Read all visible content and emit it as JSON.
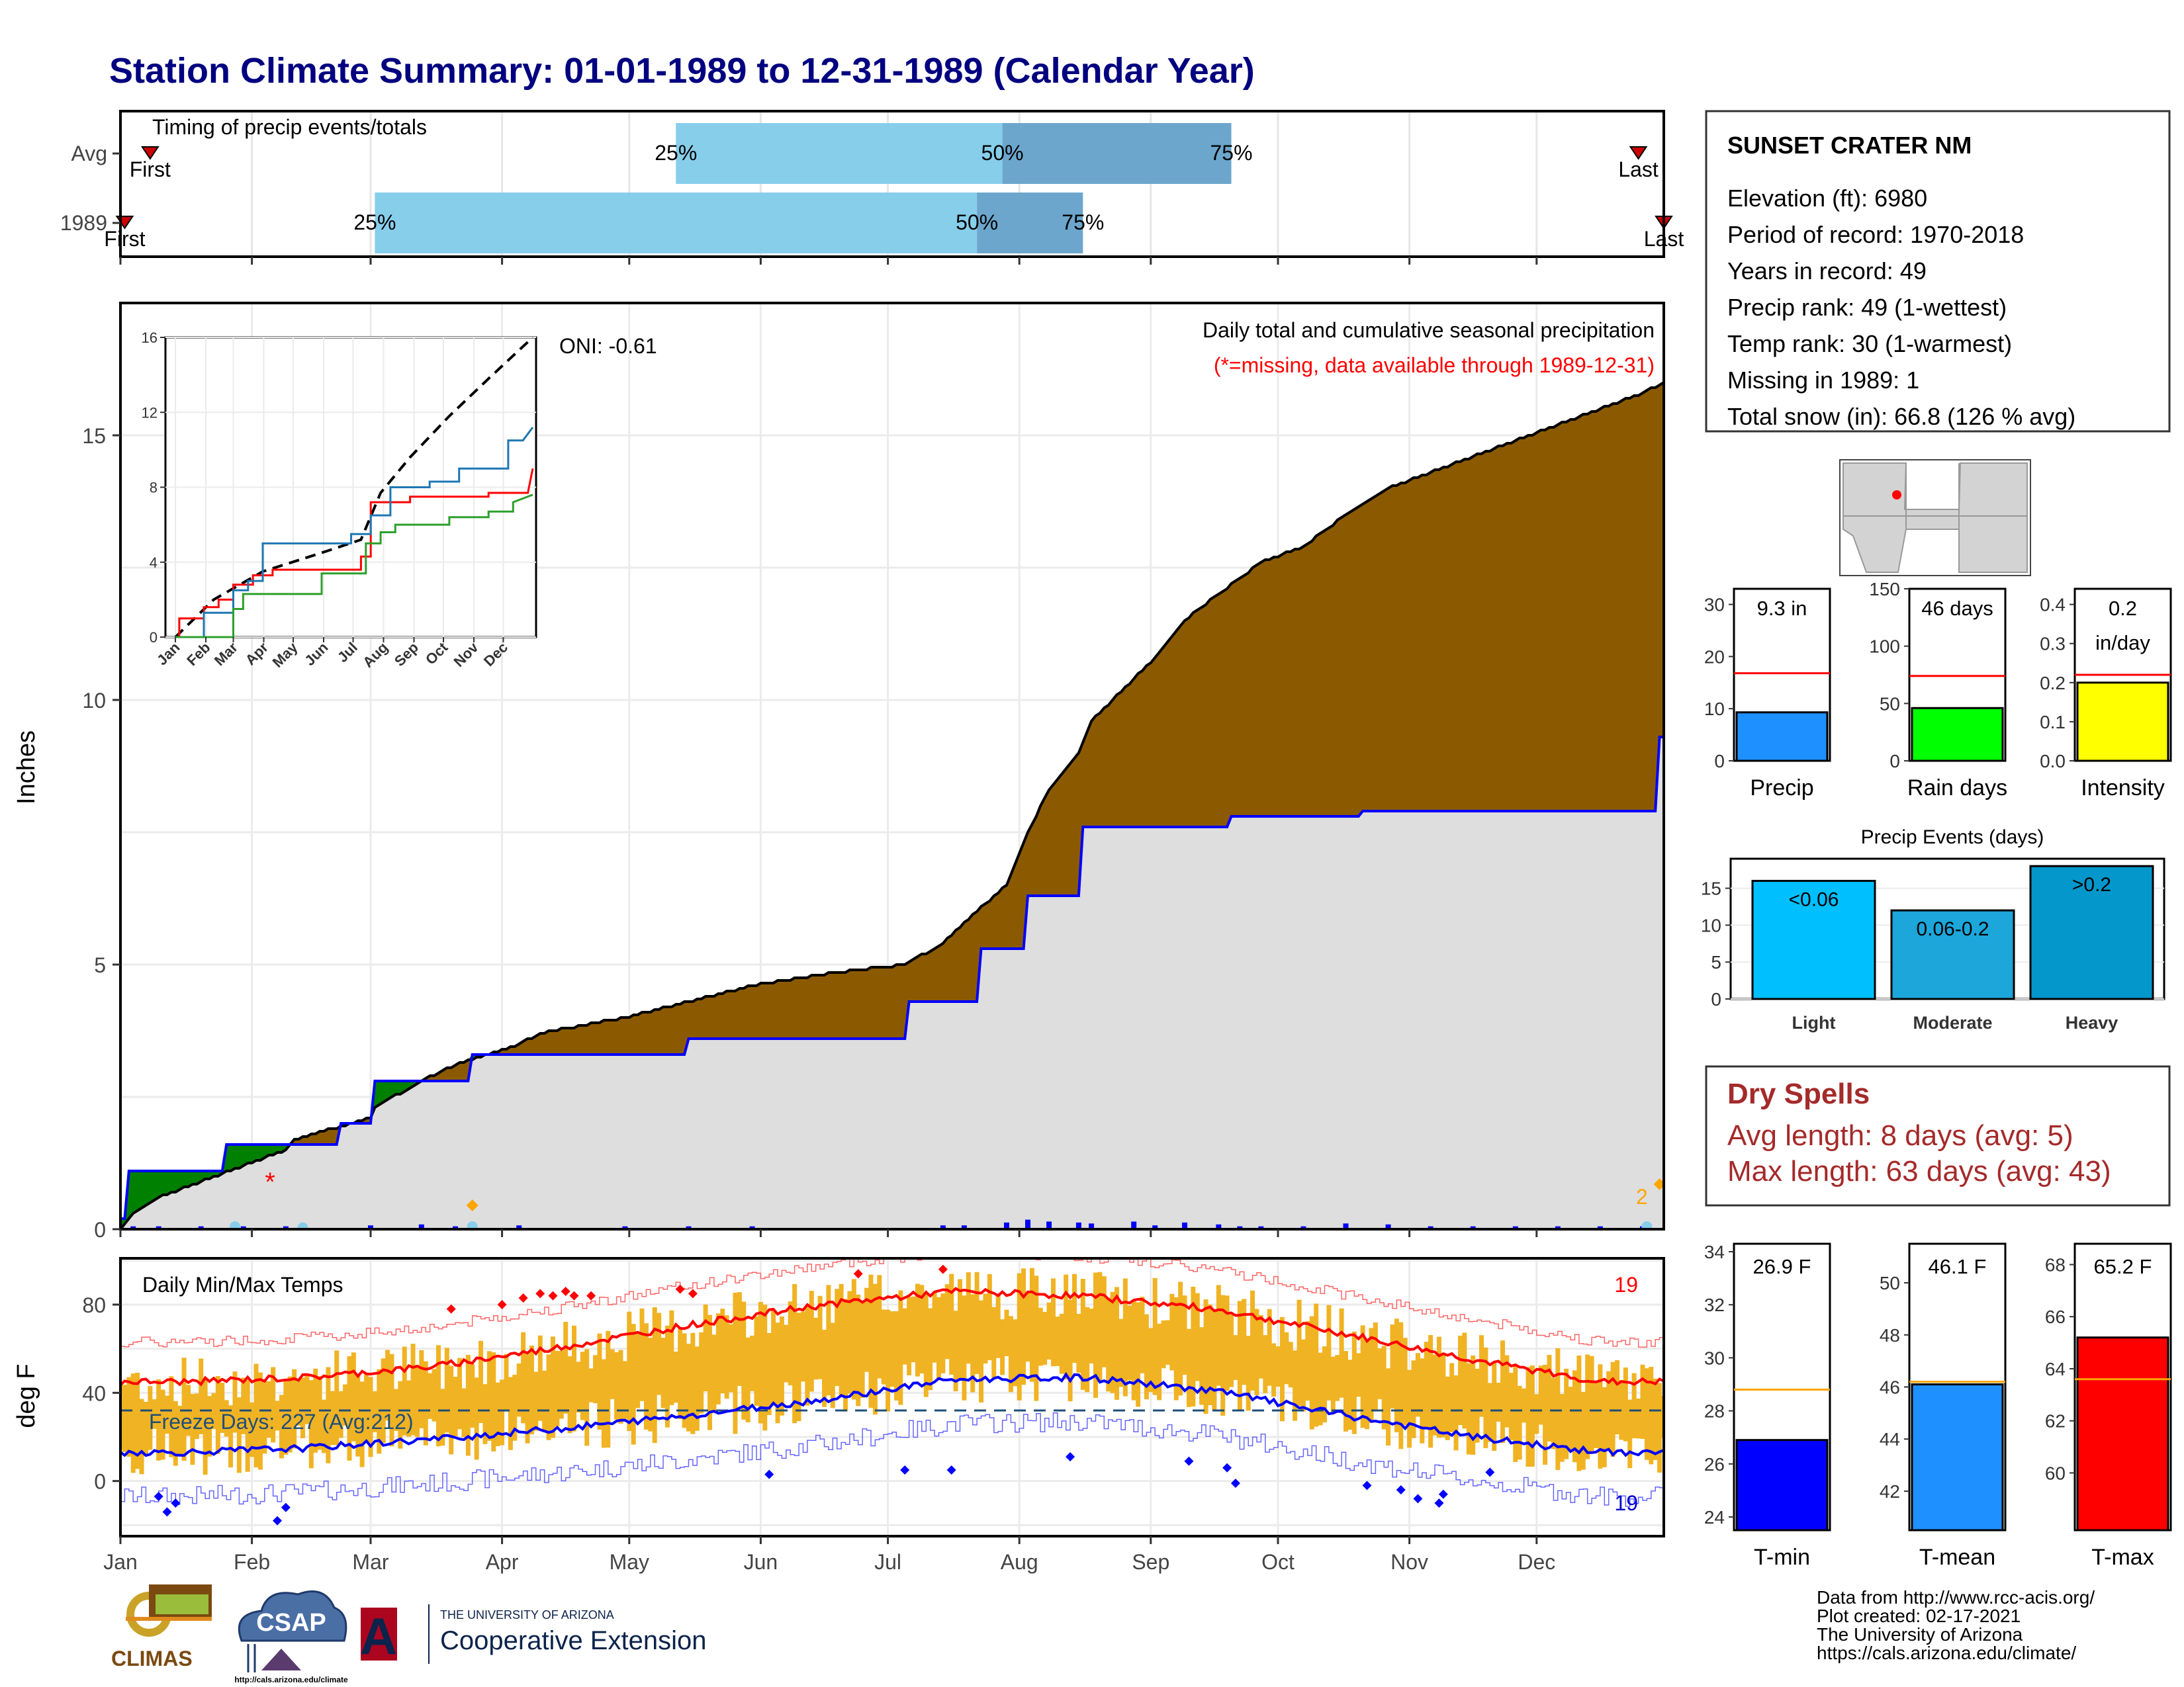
{
  "header": {
    "title": "Station Climate Summary: 01-01-1989 to 12-31-1989 (Calendar Year)"
  },
  "timing": {
    "title": "Timing of precip events/totals",
    "rows": [
      {
        "label": "Avg",
        "first_label": "First",
        "last_label": "Last",
        "first": 8,
        "q25": 132,
        "q50": 209,
        "q75": 263,
        "last": 359
      },
      {
        "label": "1989",
        "first_label": "First",
        "last_label": "Last",
        "first": 2,
        "q25": 61,
        "q50": 203,
        "q75": 228,
        "last": 365
      }
    ],
    "q_labels": [
      "25%",
      "50%",
      "75%"
    ]
  },
  "months": [
    "Jan",
    "Feb",
    "Mar",
    "Apr",
    "May",
    "Jun",
    "Jul",
    "Aug",
    "Sep",
    "Oct",
    "Nov",
    "Dec"
  ],
  "precip_panel": {
    "ylabel": "Inches",
    "note_title": "Daily total and cumulative seasonal precipitation",
    "note_missing": "(*=missing, data available through 1989-12-31)",
    "oni": "ONI: -0.61",
    "corner_label": "2"
  },
  "inset": {
    "months": [
      "Jan",
      "Feb",
      "Mar",
      "Apr",
      "May",
      "Jun",
      "Jul",
      "Aug",
      "Sep",
      "Oct",
      "Nov",
      "Dec"
    ],
    "ylim": [
      0,
      16
    ],
    "yticks": [
      "0",
      "4",
      "8",
      "12",
      "16"
    ]
  },
  "temp_panel": {
    "ylabel": "deg F",
    "title": "Daily Min/Max Temps",
    "freeze": "Freeze Days: 227 (Avg:212)",
    "max_count": "19",
    "min_count": "19",
    "yticks": [
      "0",
      "40",
      "80"
    ]
  },
  "station": {
    "name": "SUNSET CRATER NM",
    "lines": [
      "Elevation (ft): 6980",
      "Period of record: 1970-2018",
      "Years in record: 49",
      "Precip rank: 49 (1-wettest)",
      "Temp rank: 30 (1-warmest)",
      "Missing in 1989: 1",
      "Total snow (in): 66.8 (126 % avg)"
    ]
  },
  "mini_bars": [
    {
      "label": "Precip",
      "value_text": "9.3 in",
      "value": 9.3,
      "avg": 16.8,
      "ymax": 33,
      "ticks": [
        "0",
        "10",
        "20",
        "30"
      ],
      "tickvals": [
        0,
        10,
        20,
        30
      ],
      "color": "#1E90FF"
    },
    {
      "label": "Rain days",
      "value_text": "46 days",
      "value": 46,
      "avg": 74,
      "ymax": 150,
      "ticks": [
        "0",
        "50",
        "100",
        "150"
      ],
      "tickvals": [
        0,
        50,
        100,
        150
      ],
      "color": "#00FF00"
    },
    {
      "label": "Intensity",
      "value_text": "0.2",
      "value_text2": "in/day",
      "value": 0.2,
      "avg": 0.22,
      "ymax": 0.44,
      "ticks": [
        "0.0",
        "0.1",
        "0.2",
        "0.3",
        "0.4"
      ],
      "tickvals": [
        0,
        0.1,
        0.2,
        0.3,
        0.4
      ],
      "color": "#FFFF00"
    }
  ],
  "events": {
    "title": "Precip Events (days)",
    "categories": [
      "Light",
      "Moderate",
      "Heavy"
    ],
    "bar_labels": [
      "<0.06",
      "0.06-0.2",
      ">0.2"
    ],
    "values": [
      16,
      12,
      18
    ],
    "ticks": [
      "0",
      "5",
      "10",
      "15"
    ],
    "colors": [
      "#00BFFF",
      "#1CA6DA",
      "#0497CC"
    ]
  },
  "dry": {
    "title": "Dry Spells",
    "avg": "Avg length: 8 days (avg: 5)",
    "max": "Max length: 63 days (avg: 43)"
  },
  "temp_bars": [
    {
      "label": "T-min",
      "value_text": "26.9 F",
      "value": 26.9,
      "avg": 28.8,
      "ymin": 23.5,
      "ymax": 34.3,
      "ticks": [
        "24",
        "26",
        "28",
        "30",
        "32",
        "34"
      ],
      "tickvals": [
        24,
        26,
        28,
        30,
        32,
        34
      ],
      "color": "#0000FF"
    },
    {
      "label": "T-mean",
      "value_text": "46.1 F",
      "value": 46.1,
      "avg": 46.2,
      "ymin": 40.5,
      "ymax": 51.5,
      "ticks": [
        "42",
        "44",
        "46",
        "48",
        "50"
      ],
      "tickvals": [
        42,
        44,
        46,
        48,
        50
      ],
      "color": "#1E90FF"
    },
    {
      "label": "T-max",
      "value_text": "65.2 F",
      "value": 65.2,
      "avg": 63.6,
      "ymin": 57.8,
      "ymax": 68.8,
      "ticks": [
        "60",
        "62",
        "64",
        "66",
        "68"
      ],
      "tickvals": [
        60,
        62,
        64,
        66,
        68
      ],
      "color": "#FF0000"
    }
  ],
  "footer": {
    "lines": [
      "Data from http://www.rcc-acis.org/",
      "Plot created: 02-17-2021",
      "The University of Arizona",
      "https://cals.arizona.edu/climate/"
    ],
    "climas": "CLIMAS",
    "csap": "CSAP",
    "csap_url": "http://cals.arizona.edu/climate",
    "ua_small": "THE UNIVERSITY OF ARIZONA",
    "ua_big": "Cooperative Extension",
    "ua_letter": "A"
  },
  "chart_data": [
    {
      "type": "area",
      "title": "Daily total and cumulative seasonal precipitation",
      "ylabel": "Inches",
      "ylim": [
        0,
        17.5
      ],
      "yticks": [
        0,
        5,
        10,
        15
      ],
      "series": [
        {
          "name": "",
          "x_day": [
            1,
            4,
            10,
            20,
            30,
            40,
            42,
            60,
            61,
            72,
            80,
            95,
            100,
            120,
            135,
            150,
            165,
            175,
            186,
            195,
            200,
            210,
            215,
            220,
            227,
            230,
            240,
            245,
            252,
            260,
            265,
            270,
            280,
            290,
            300,
            310,
            320,
            330,
            340,
            350,
            360,
            365
          ],
          "y": [
            0.0,
            0.3,
            0.6,
            0.9,
            1.2,
            1.5,
            1.7,
            2.1,
            2.3,
            2.8,
            3.1,
            3.5,
            3.7,
            4.0,
            4.3,
            4.6,
            4.8,
            4.9,
            5.0,
            5.4,
            5.8,
            6.5,
            7.5,
            8.3,
            9.0,
            9.6,
            10.4,
            10.8,
            11.5,
            12.0,
            12.3,
            12.6,
            12.9,
            13.5,
            14.0,
            14.3,
            14.6,
            14.9,
            15.2,
            15.5,
            15.8,
            16.0
          ]
        },
        {
          "name": "",
          "x_day": [
            1,
            3,
            25,
            26,
            52,
            53,
            60,
            61,
            83,
            84,
            134,
            135,
            186,
            187,
            203,
            204,
            214,
            215,
            227,
            228,
            240,
            241,
            262,
            263,
            293,
            294,
            363,
            364,
            365
          ],
          "y": [
            0.2,
            1.1,
            1.1,
            1.6,
            1.6,
            2.0,
            2.0,
            2.8,
            2.8,
            3.3,
            3.3,
            3.6,
            3.6,
            4.3,
            4.3,
            5.3,
            5.3,
            6.3,
            6.3,
            7.6,
            7.6,
            7.6,
            7.6,
            7.8,
            7.8,
            7.9,
            7.9,
            9.3,
            9.3
          ]
        }
      ]
    },
    {
      "type": "line",
      "title": "Daily Min/Max Temps",
      "ylabel": "deg F",
      "ylim": [
        -25,
        101
      ],
      "months": [
        "Jan",
        "Feb",
        "Mar",
        "Apr",
        "May",
        "Jun",
        "Jul",
        "Aug",
        "Sep",
        "Oct",
        "Nov",
        "Dec"
      ],
      "series": [
        {
          "name": "",
          "monthly_values": [
            45,
            47,
            52,
            61,
            71,
            80,
            86,
            84,
            78,
            67,
            55,
            45
          ]
        },
        {
          "name": "",
          "monthly_values": [
            13,
            15,
            19,
            24,
            30,
            37,
            46,
            47,
            41,
            30,
            20,
            13
          ]
        }
      ]
    }
  ]
}
